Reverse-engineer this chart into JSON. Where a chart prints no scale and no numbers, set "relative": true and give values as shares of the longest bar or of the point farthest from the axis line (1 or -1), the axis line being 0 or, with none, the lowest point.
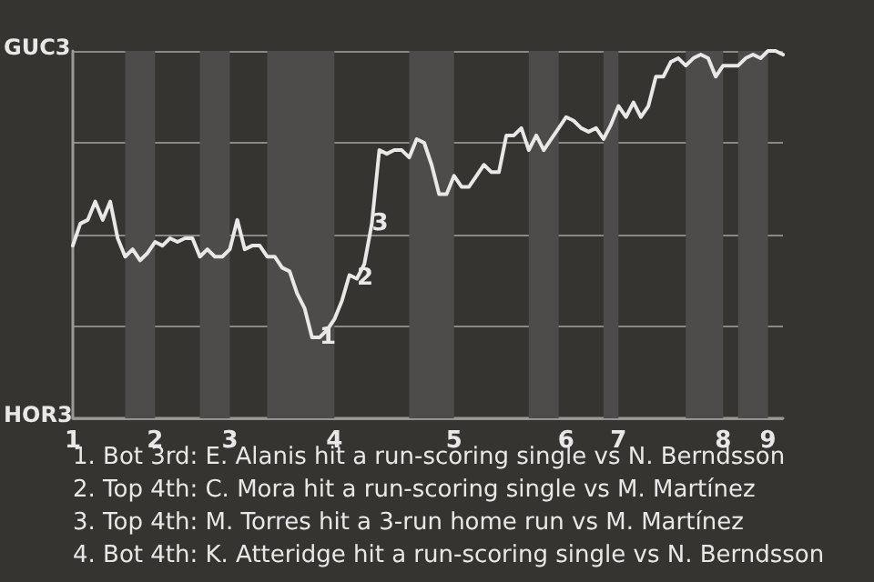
{
  "chart_data": {
    "type": "line",
    "relative": true,
    "categories": [
      "1",
      null,
      null,
      null,
      null,
      null,
      null,
      null,
      null,
      null,
      null,
      "2",
      null,
      null,
      null,
      null,
      null,
      null,
      null,
      null,
      null,
      "3",
      null,
      null,
      null,
      null,
      null,
      null,
      null,
      null,
      null,
      null,
      null,
      null,
      null,
      "4",
      null,
      null,
      null,
      null,
      null,
      null,
      null,
      null,
      null,
      null,
      null,
      null,
      null,
      null,
      null,
      "5",
      null,
      null,
      null,
      null,
      null,
      null,
      null,
      null,
      null,
      null,
      null,
      null,
      null,
      null,
      "6",
      null,
      null,
      null,
      null,
      null,
      null,
      "7",
      null,
      null,
      null,
      null,
      null,
      null,
      null,
      null,
      null,
      null,
      null,
      null,
      null,
      "8",
      null,
      null,
      null,
      null,
      null,
      "9",
      null,
      null
    ],
    "series": [
      {
        "color": "#e8e8e6",
        "values": [
          0.47,
          0.53,
          0.54,
          0.59,
          0.54,
          0.59,
          0.49,
          0.44,
          0.46,
          0.43,
          0.45,
          0.48,
          0.47,
          0.49,
          0.48,
          0.49,
          0.49,
          0.44,
          0.46,
          0.44,
          0.44,
          0.46,
          0.54,
          0.46,
          0.47,
          0.47,
          0.44,
          0.44,
          0.41,
          0.4,
          0.34,
          0.3,
          0.22,
          0.22,
          0.24,
          0.27,
          0.32,
          0.39,
          0.38,
          0.42,
          0.53,
          0.73,
          0.72,
          0.73,
          0.73,
          0.71,
          0.76,
          0.75,
          0.69,
          0.61,
          0.61,
          0.66,
          0.63,
          0.63,
          0.66,
          0.69,
          0.67,
          0.67,
          0.77,
          0.77,
          0.79,
          0.73,
          0.77,
          0.73,
          0.76,
          0.79,
          0.82,
          0.81,
          0.79,
          0.78,
          0.79,
          0.76,
          0.8,
          0.85,
          0.82,
          0.86,
          0.82,
          0.85,
          0.93,
          0.93,
          0.97,
          0.98,
          0.96,
          0.98,
          0.99,
          0.98,
          0.93,
          0.96,
          0.96,
          0.96,
          0.98,
          0.99,
          0.98,
          1,
          1,
          0.99
        ]
      }
    ],
    "grid": "y",
    "marker": "none",
    "line_style": "solid",
    "annotations": [
      "GUC3",
      "HOR3",
      {
        "text": "1",
        "y": 0.22
      },
      {
        "text": "2",
        "y": 0.38
      },
      {
        "text": "3",
        "y": 0.53
      },
      "1. Bot 3rd: E. Alanis hit a run-scoring single vs N. Berndsson",
      "2. Top 4th: C. Mora hit a run-scoring single vs M. Martínez",
      "3. Top 4th: M. Torres hit a 3-run home run vs M. Martínez",
      "4. Bot 4th: K. Atteridge hit a run-scoring single vs N. Berndsson"
    ]
  }
}
